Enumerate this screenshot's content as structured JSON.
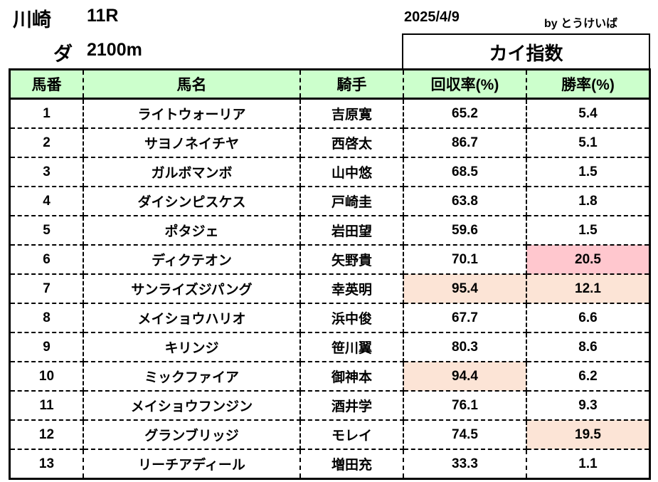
{
  "header": {
    "venue": "川崎",
    "race": "11R",
    "surface": "ダ",
    "distance": "2100m",
    "date": "2025/4/9",
    "credit": "by とうけいば",
    "index_title": "カイ指数"
  },
  "columns": [
    "馬番",
    "馬名",
    "騎手",
    "回収率(%)",
    "勝率(%)"
  ],
  "colors": {
    "header_bg": "#ccffcc",
    "highlight_strong": "#ffc7ce",
    "highlight_light": "#fce4d6"
  },
  "rows": [
    {
      "num": "1",
      "horse": "ライトウォーリア",
      "jockey": "吉原寛",
      "roi": "65.2",
      "win": "5.4",
      "roi_hl": "",
      "win_hl": ""
    },
    {
      "num": "2",
      "horse": "サヨノネイチヤ",
      "jockey": "西啓太",
      "roi": "86.7",
      "win": "5.1",
      "roi_hl": "",
      "win_hl": ""
    },
    {
      "num": "3",
      "horse": "ガルボマンボ",
      "jockey": "山中悠",
      "roi": "68.5",
      "win": "1.5",
      "roi_hl": "",
      "win_hl": ""
    },
    {
      "num": "4",
      "horse": "ダイシンピスケス",
      "jockey": "戸崎圭",
      "roi": "63.8",
      "win": "1.8",
      "roi_hl": "",
      "win_hl": ""
    },
    {
      "num": "5",
      "horse": "ポタジェ",
      "jockey": "岩田望",
      "roi": "59.6",
      "win": "1.5",
      "roi_hl": "",
      "win_hl": ""
    },
    {
      "num": "6",
      "horse": "ディクテオン",
      "jockey": "矢野貴",
      "roi": "70.1",
      "win": "20.5",
      "roi_hl": "",
      "win_hl": "pink"
    },
    {
      "num": "7",
      "horse": "サンライズジパング",
      "jockey": "幸英明",
      "roi": "95.4",
      "win": "12.1",
      "roi_hl": "peach",
      "win_hl": "peach"
    },
    {
      "num": "8",
      "horse": "メイショウハリオ",
      "jockey": "浜中俊",
      "roi": "67.7",
      "win": "6.6",
      "roi_hl": "",
      "win_hl": ""
    },
    {
      "num": "9",
      "horse": "キリンジ",
      "jockey": "笹川翼",
      "roi": "80.3",
      "win": "8.6",
      "roi_hl": "",
      "win_hl": ""
    },
    {
      "num": "10",
      "horse": "ミックファイア",
      "jockey": "御神本",
      "roi": "94.4",
      "win": "6.2",
      "roi_hl": "peach",
      "win_hl": ""
    },
    {
      "num": "11",
      "horse": "メイショウフンジン",
      "jockey": "酒井学",
      "roi": "76.1",
      "win": "9.3",
      "roi_hl": "",
      "win_hl": ""
    },
    {
      "num": "12",
      "horse": "グランブリッジ",
      "jockey": "モレイ",
      "roi": "74.5",
      "win": "19.5",
      "roi_hl": "",
      "win_hl": "peach"
    },
    {
      "num": "13",
      "horse": "リーチアディール",
      "jockey": "増田充",
      "roi": "33.3",
      "win": "1.1",
      "roi_hl": "",
      "win_hl": ""
    }
  ]
}
